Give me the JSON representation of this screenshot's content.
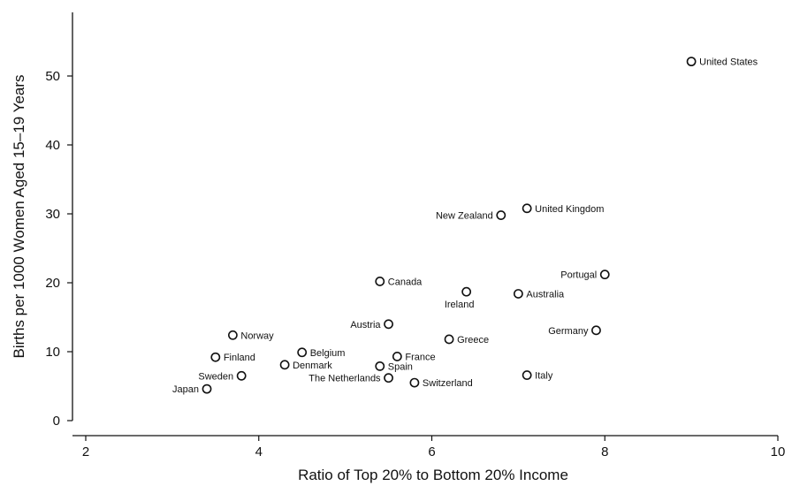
{
  "chart_data": {
    "type": "scatter",
    "xlabel": "Ratio of Top 20% to Bottom 20% Income",
    "ylabel": "Births per 1000 Women Aged 15–19 Years",
    "xlim": [
      2,
      10
    ],
    "ylim": [
      0,
      55
    ],
    "xticks": [
      "2",
      "4",
      "6",
      "8",
      "10"
    ],
    "yticks": [
      "0",
      "10",
      "20",
      "30",
      "40",
      "50"
    ],
    "grid": false,
    "legend": "none",
    "points": [
      {
        "label": "United States",
        "x": 9.0,
        "y": 52.1,
        "pos": "right"
      },
      {
        "label": "United Kingdom",
        "x": 7.1,
        "y": 30.8,
        "pos": "right"
      },
      {
        "label": "New Zealand",
        "x": 6.8,
        "y": 29.8,
        "pos": "left"
      },
      {
        "label": "Portugal",
        "x": 8.0,
        "y": 21.2,
        "pos": "left"
      },
      {
        "label": "Canada",
        "x": 5.4,
        "y": 20.2,
        "pos": "right"
      },
      {
        "label": "Ireland",
        "x": 6.4,
        "y": 18.7,
        "pos": "below"
      },
      {
        "label": "Australia",
        "x": 7.0,
        "y": 18.4,
        "pos": "right"
      },
      {
        "label": "Austria",
        "x": 5.5,
        "y": 14.0,
        "pos": "left"
      },
      {
        "label": "Germany",
        "x": 7.9,
        "y": 13.1,
        "pos": "left"
      },
      {
        "label": "Norway",
        "x": 3.7,
        "y": 12.4,
        "pos": "right"
      },
      {
        "label": "Greece",
        "x": 6.2,
        "y": 11.8,
        "pos": "right"
      },
      {
        "label": "Belgium",
        "x": 4.5,
        "y": 9.9,
        "pos": "right"
      },
      {
        "label": "France",
        "x": 5.6,
        "y": 9.3,
        "pos": "right"
      },
      {
        "label": "Finland",
        "x": 3.5,
        "y": 9.2,
        "pos": "right"
      },
      {
        "label": "Denmark",
        "x": 4.3,
        "y": 8.1,
        "pos": "right"
      },
      {
        "label": "Spain",
        "x": 5.4,
        "y": 7.9,
        "pos": "right"
      },
      {
        "label": "Italy",
        "x": 7.1,
        "y": 6.6,
        "pos": "right"
      },
      {
        "label": "Sweden",
        "x": 3.8,
        "y": 6.5,
        "pos": "left"
      },
      {
        "label": "The Netherlands",
        "x": 5.5,
        "y": 6.2,
        "pos": "left"
      },
      {
        "label": "Switzerland",
        "x": 5.8,
        "y": 5.5,
        "pos": "right"
      },
      {
        "label": "Japan",
        "x": 3.4,
        "y": 4.6,
        "pos": "left"
      }
    ]
  }
}
